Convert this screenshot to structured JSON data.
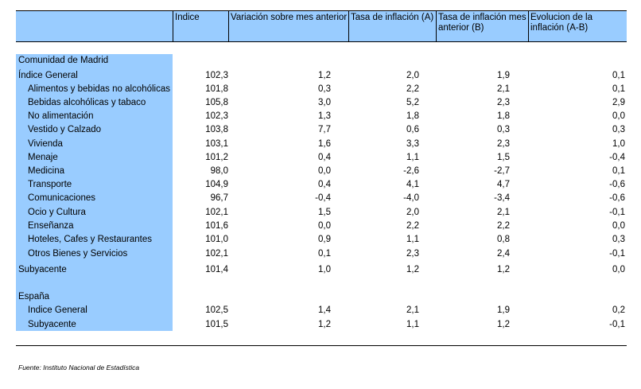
{
  "headers": [
    "Indice",
    "Variación sobre mes anterior",
    "Tasa de inflación (A)",
    "Tasa de inflación mes anterior (B)",
    "Evolucion de la inflación (A-B)"
  ],
  "madrid": {
    "title": "Comunidad de Madrid",
    "rows": [
      {
        "label": "Índice General",
        "indent": false,
        "values": [
          "102,3",
          "1,2",
          "2,0",
          "1,9",
          "0,1"
        ]
      },
      {
        "label": "Alimentos y bebidas no alcohólicas",
        "indent": true,
        "values": [
          "101,8",
          "0,3",
          "2,2",
          "2,1",
          "0,1"
        ]
      },
      {
        "label": "Bebidas alcohólicas y tabaco",
        "indent": true,
        "values": [
          "105,8",
          "3,0",
          "5,2",
          "2,3",
          "2,9"
        ]
      },
      {
        "label": "No alimentación",
        "indent": true,
        "values": [
          "102,3",
          "1,3",
          "1,8",
          "1,8",
          "0,0"
        ]
      },
      {
        "label": "Vestido y Calzado",
        "indent": true,
        "values": [
          "103,8",
          "7,7",
          "0,6",
          "0,3",
          "0,3"
        ]
      },
      {
        "label": "Vivienda",
        "indent": true,
        "values": [
          "103,1",
          "1,6",
          "3,3",
          "2,3",
          "1,0"
        ]
      },
      {
        "label": "Menaje",
        "indent": true,
        "values": [
          "101,2",
          "0,4",
          "1,1",
          "1,5",
          "-0,4"
        ]
      },
      {
        "label": "Medicina",
        "indent": true,
        "values": [
          "98,0",
          "0,0",
          "-2,6",
          "-2,7",
          "0,1"
        ]
      },
      {
        "label": "Transporte",
        "indent": true,
        "values": [
          "104,9",
          "0,4",
          "4,1",
          "4,7",
          "-0,6"
        ]
      },
      {
        "label": "Comunicaciones",
        "indent": true,
        "values": [
          "96,7",
          "-0,4",
          "-4,0",
          "-3,4",
          "-0,6"
        ]
      },
      {
        "label": "Ocio y Cultura",
        "indent": true,
        "values": [
          "102,1",
          "1,5",
          "2,0",
          "2,1",
          "-0,1"
        ]
      },
      {
        "label": "Enseñanza",
        "indent": true,
        "values": [
          "101,6",
          "0,0",
          "2,2",
          "2,2",
          "0,0"
        ]
      },
      {
        "label": "Hoteles, Cafes y Restaurantes",
        "indent": true,
        "values": [
          "101,0",
          "0,9",
          "1,1",
          "0,8",
          "0,3"
        ]
      },
      {
        "label": "Otros Bienes y Servicios",
        "indent": true,
        "values": [
          "102,1",
          "0,1",
          "2,3",
          "2,4",
          "-0,1"
        ]
      },
      {
        "label": "Subyacente",
        "indent": false,
        "values": [
          "101,4",
          "1,0",
          "1,2",
          "1,2",
          "0,0"
        ]
      }
    ]
  },
  "espana": {
    "title": "España",
    "rows": [
      {
        "label": "Indice General",
        "indent": true,
        "values": [
          "102,5",
          "1,4",
          "2,1",
          "1,9",
          "0,2"
        ]
      },
      {
        "label": "Subyacente",
        "indent": true,
        "values": [
          "101,5",
          "1,2",
          "1,1",
          "1,2",
          "-0,1"
        ]
      }
    ]
  },
  "source": "Fuente: Instituto Nacional de Estadística"
}
